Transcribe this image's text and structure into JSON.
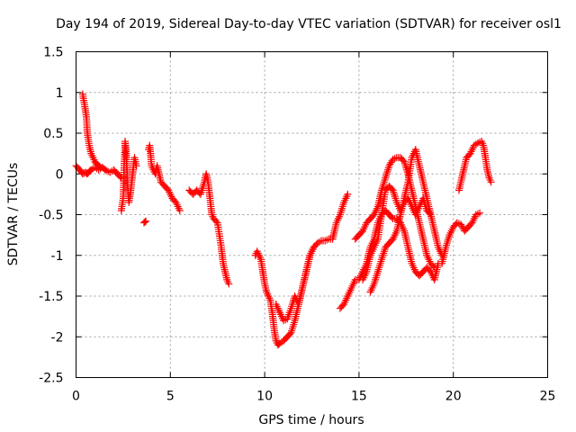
{
  "chart_data": {
    "type": "scatter",
    "title": "Day 194 of 2019, Sidereal Day-to-day VTEC variation (SDTVAR) for receiver osl1",
    "xlabel": "GPS time / hours",
    "ylabel": "SDTVAR / TECUs",
    "xlim": [
      0,
      25
    ],
    "ylim": [
      -2.5,
      1.5
    ],
    "grid": true,
    "marker": "+",
    "xticks": [
      0,
      5,
      10,
      15,
      20,
      25
    ],
    "xtick_labels": [
      "0",
      "5",
      "10",
      "15",
      "20",
      "25"
    ],
    "yticks": [
      -2.5,
      -2,
      -1.5,
      -1,
      -0.5,
      0,
      0.5,
      1,
      1.5
    ],
    "ytick_labels": [
      "-2.5",
      "-2",
      "-1.5",
      "-1",
      "-0.5",
      "0",
      "0.5",
      "1",
      "1.5"
    ],
    "colors": {
      "marker": "#ff0000",
      "axes": "#000000",
      "grid": "#a0a0a0",
      "background": "#ffffff"
    },
    "series": [
      {
        "name": "s1",
        "x": [
          0.0,
          0.2,
          0.35,
          0.5,
          0.6,
          0.7,
          0.8,
          1.0,
          1.2,
          1.4,
          1.6,
          1.8,
          2.0,
          2.2,
          2.4
        ],
        "y": [
          0.1,
          0.05,
          0.0,
          0.02,
          0.0,
          0.03,
          0.05,
          0.08,
          0.05,
          0.08,
          0.04,
          0.02,
          0.05,
          0.0,
          -0.05
        ]
      },
      {
        "name": "s2",
        "x": [
          0.35,
          0.45,
          0.55,
          0.6,
          0.7,
          0.8,
          0.9,
          1.0,
          1.1,
          1.2,
          1.3
        ],
        "y": [
          0.98,
          0.85,
          0.7,
          0.5,
          0.35,
          0.25,
          0.2,
          0.15,
          0.12,
          0.1,
          0.08
        ]
      },
      {
        "name": "s3",
        "x": [
          2.4,
          2.5,
          2.55,
          2.6,
          2.65,
          2.7,
          2.75,
          2.8,
          2.9,
          3.0,
          3.1,
          3.2
        ],
        "y": [
          -0.45,
          -0.3,
          0.1,
          0.4,
          0.3,
          0.05,
          -0.2,
          -0.35,
          -0.2,
          0.0,
          0.2,
          0.1
        ]
      },
      {
        "name": "s4",
        "x": [
          3.6,
          3.7
        ],
        "y": [
          -0.6,
          -0.58
        ]
      },
      {
        "name": "s5",
        "x": [
          3.85,
          3.9,
          3.95,
          4.0,
          4.1,
          4.2,
          4.3,
          4.4,
          4.5,
          4.7,
          4.9,
          5.1,
          5.3,
          5.5
        ],
        "y": [
          0.3,
          0.35,
          0.25,
          0.1,
          0.05,
          0.0,
          0.1,
          0.0,
          -0.1,
          -0.15,
          -0.2,
          -0.3,
          -0.35,
          -0.45
        ]
      },
      {
        "name": "s6",
        "x": [
          6.0,
          6.2,
          6.4,
          6.6,
          6.8,
          6.9,
          7.0,
          7.1,
          7.2,
          7.3,
          7.5,
          7.7,
          7.8,
          7.9,
          8.0,
          8.1
        ],
        "y": [
          -0.2,
          -0.25,
          -0.2,
          -0.25,
          -0.1,
          0.0,
          -0.1,
          -0.3,
          -0.5,
          -0.55,
          -0.6,
          -0.9,
          -1.1,
          -1.2,
          -1.3,
          -1.35
        ]
      },
      {
        "name": "s7",
        "x": [
          9.5,
          9.6,
          9.7,
          9.8,
          9.9,
          10.0,
          10.1,
          10.2,
          10.3,
          10.4,
          10.5,
          10.6,
          10.7,
          10.8,
          11.0,
          11.2,
          11.4,
          11.6,
          11.8,
          12.0,
          12.2,
          12.4,
          12.6,
          12.8,
          13.0,
          13.2,
          13.4,
          13.6,
          13.8,
          14.0,
          14.2,
          14.4
        ],
        "y": [
          -1.0,
          -0.95,
          -1.0,
          -1.05,
          -1.2,
          -1.35,
          -1.45,
          -1.5,
          -1.55,
          -1.7,
          -1.9,
          -2.05,
          -2.1,
          -2.08,
          -2.05,
          -2.0,
          -1.95,
          -1.8,
          -1.6,
          -1.4,
          -1.2,
          -1.0,
          -0.9,
          -0.85,
          -0.82,
          -0.82,
          -0.8,
          -0.8,
          -0.6,
          -0.5,
          -0.35,
          -0.25
        ]
      },
      {
        "name": "s8",
        "x": [
          10.6,
          10.8,
          11.0,
          11.2,
          11.4,
          11.6,
          11.8,
          12.0,
          12.2,
          12.4,
          12.6
        ],
        "y": [
          -1.6,
          -1.7,
          -1.8,
          -1.78,
          -1.65,
          -1.5,
          -1.6,
          -1.4,
          -1.2,
          -1.0,
          -0.9
        ]
      },
      {
        "name": "s9",
        "x": [
          14.0,
          14.2,
          14.4,
          14.6,
          14.8,
          15.0,
          15.2,
          15.4,
          15.6,
          15.8,
          16.0,
          16.2,
          16.4,
          16.6,
          16.8,
          17.0,
          17.2,
          17.4,
          17.6,
          17.8,
          18.0,
          18.2,
          18.4,
          18.6,
          18.8,
          19.0,
          19.2
        ],
        "y": [
          -1.65,
          -1.6,
          -1.5,
          -1.4,
          -1.3,
          -1.3,
          -1.2,
          -1.1,
          -0.9,
          -0.8,
          -0.6,
          -0.5,
          -0.45,
          -0.5,
          -0.55,
          -0.55,
          -0.6,
          -0.7,
          -0.9,
          -1.1,
          -1.2,
          -1.25,
          -1.2,
          -1.15,
          -1.2,
          -1.3,
          -1.1
        ]
      },
      {
        "name": "s10",
        "x": [
          14.8,
          15.0,
          15.2,
          15.4,
          15.6,
          15.8,
          16.0,
          16.2,
          16.4,
          16.6,
          16.8,
          17.0,
          17.2,
          17.4,
          17.6,
          17.8,
          18.0,
          18.2,
          18.4,
          18.6,
          18.8,
          19.0
        ],
        "y": [
          -0.8,
          -0.75,
          -0.7,
          -0.6,
          -0.55,
          -0.5,
          -0.4,
          -0.2,
          -0.05,
          0.1,
          0.18,
          0.2,
          0.2,
          0.15,
          0.0,
          -0.2,
          -0.4,
          -0.6,
          -0.8,
          -1.0,
          -1.1,
          -1.15
        ]
      },
      {
        "name": "s11",
        "x": [
          15.2,
          15.4,
          15.6,
          15.8,
          16.0,
          16.2,
          16.4,
          16.6,
          16.8,
          17.0,
          17.2,
          17.4,
          17.6,
          17.8,
          18.0,
          18.2,
          18.4,
          18.6,
          18.8
        ],
        "y": [
          -1.3,
          -1.2,
          -1.0,
          -0.9,
          -0.8,
          -0.5,
          -0.2,
          -0.15,
          -0.2,
          -0.35,
          -0.45,
          -0.35,
          -0.3,
          -0.4,
          -0.5,
          -0.4,
          -0.3,
          -0.45,
          -0.5
        ]
      },
      {
        "name": "s12",
        "x": [
          15.6,
          15.8,
          16.0,
          16.2,
          16.4,
          16.6,
          16.8,
          17.0,
          17.2,
          17.4,
          17.6,
          17.8,
          18.0,
          18.2,
          18.4,
          18.6,
          18.8,
          19.0,
          19.2,
          19.4
        ],
        "y": [
          -1.45,
          -1.35,
          -1.2,
          -1.05,
          -0.9,
          -0.85,
          -0.8,
          -0.7,
          -0.5,
          -0.3,
          -0.1,
          0.2,
          0.3,
          0.1,
          -0.1,
          -0.3,
          -0.5,
          -0.7,
          -0.9,
          -1.0
        ]
      },
      {
        "name": "s13",
        "x": [
          19.4,
          19.6,
          19.8,
          20.0,
          20.2,
          20.4,
          20.6,
          20.8,
          21.0,
          21.2,
          21.4
        ],
        "y": [
          -1.1,
          -0.9,
          -0.75,
          -0.65,
          -0.6,
          -0.62,
          -0.7,
          -0.65,
          -0.6,
          -0.5,
          -0.48
        ]
      },
      {
        "name": "s14",
        "x": [
          20.3,
          20.5,
          20.7,
          20.9,
          21.1,
          21.3,
          21.5,
          21.6,
          21.7,
          21.8,
          21.9,
          22.0
        ],
        "y": [
          -0.2,
          0.0,
          0.2,
          0.25,
          0.35,
          0.38,
          0.4,
          0.35,
          0.2,
          0.05,
          -0.05,
          -0.1
        ]
      }
    ]
  }
}
